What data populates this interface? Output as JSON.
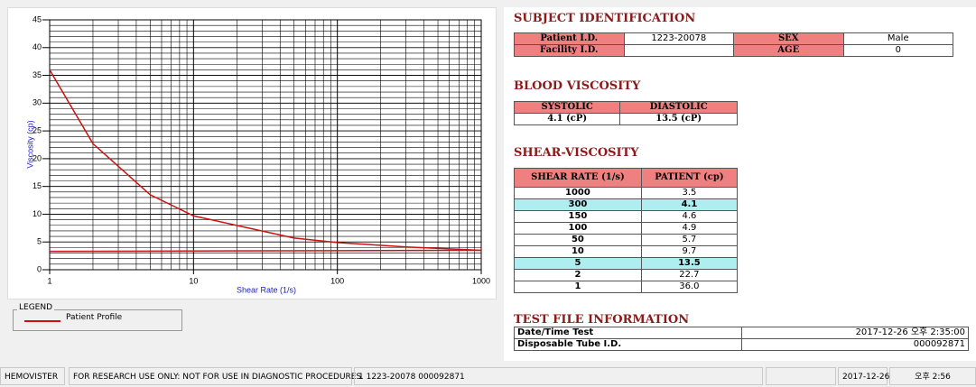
{
  "chart_data": {
    "type": "line",
    "x_label": "Shear Rate (1/s)",
    "y_label": "Viscosity (cp)",
    "xscale": "log",
    "xlim": [
      1,
      1000
    ],
    "xticks": [
      1,
      10,
      100,
      1000
    ],
    "ylim": [
      0,
      45
    ],
    "yticks": [
      0,
      5,
      10,
      15,
      20,
      25,
      30,
      35,
      40,
      45
    ],
    "grid": true,
    "minor_grid": true,
    "legend_title": "LEGEND",
    "series": [
      {
        "name": "Patient Profile",
        "color": "#cc1111",
        "x": [
          1,
          2,
          5,
          10,
          50,
          100,
          150,
          300,
          1000
        ],
        "values": [
          36.0,
          22.7,
          13.5,
          9.7,
          5.7,
          4.9,
          4.6,
          4.1,
          3.5
        ]
      },
      {
        "color": "#cc1111",
        "x": [
          1,
          1000
        ],
        "values": [
          3.3,
          3.5
        ]
      }
    ]
  },
  "subject": {
    "title": "SUBJECT IDENTIFICATION",
    "rows": [
      [
        "Patient I.D.",
        "1223-20078",
        "SEX",
        "Male"
      ],
      [
        "Facility I.D.",
        null,
        "AGE",
        "0"
      ]
    ]
  },
  "blood": {
    "title": "BLOOD VISCOSITY",
    "headers": [
      "SYSTOLIC",
      "DIASTOLIC"
    ],
    "values": [
      "4.1 (cP)",
      "13.5 (cP)"
    ]
  },
  "shear": {
    "title": "SHEAR-VISCOSITY",
    "headers": [
      "SHEAR RATE (1/s)",
      "PATIENT (cp)"
    ],
    "rows": [
      [
        "1000",
        "3.5"
      ],
      [
        "300",
        "4.1"
      ],
      [
        "150",
        "4.6"
      ],
      [
        "100",
        "4.9"
      ],
      [
        "50",
        "5.7"
      ],
      [
        "10",
        "9.7"
      ],
      [
        "5",
        "13.5"
      ],
      [
        "2",
        "22.7"
      ],
      [
        "1",
        "36.0"
      ]
    ],
    "highlighted_rows": [
      1,
      6
    ]
  },
  "test_file": {
    "title": "TEST FILE INFORMATION",
    "rows": [
      [
        "Date/Time Test",
        "2017-12-26  오후 2:35:00"
      ],
      [
        "Disposable Tube I.D.",
        "000092871"
      ]
    ]
  },
  "status_bar": [
    "HEMOVISTER",
    "FOR RESEARCH USE ONLY: NOT FOR USE IN DIAGNOSTIC PROCEDURES",
    "1  1223-20078  000092871",
    "2017-12-26",
    "오후 2:56"
  ]
}
